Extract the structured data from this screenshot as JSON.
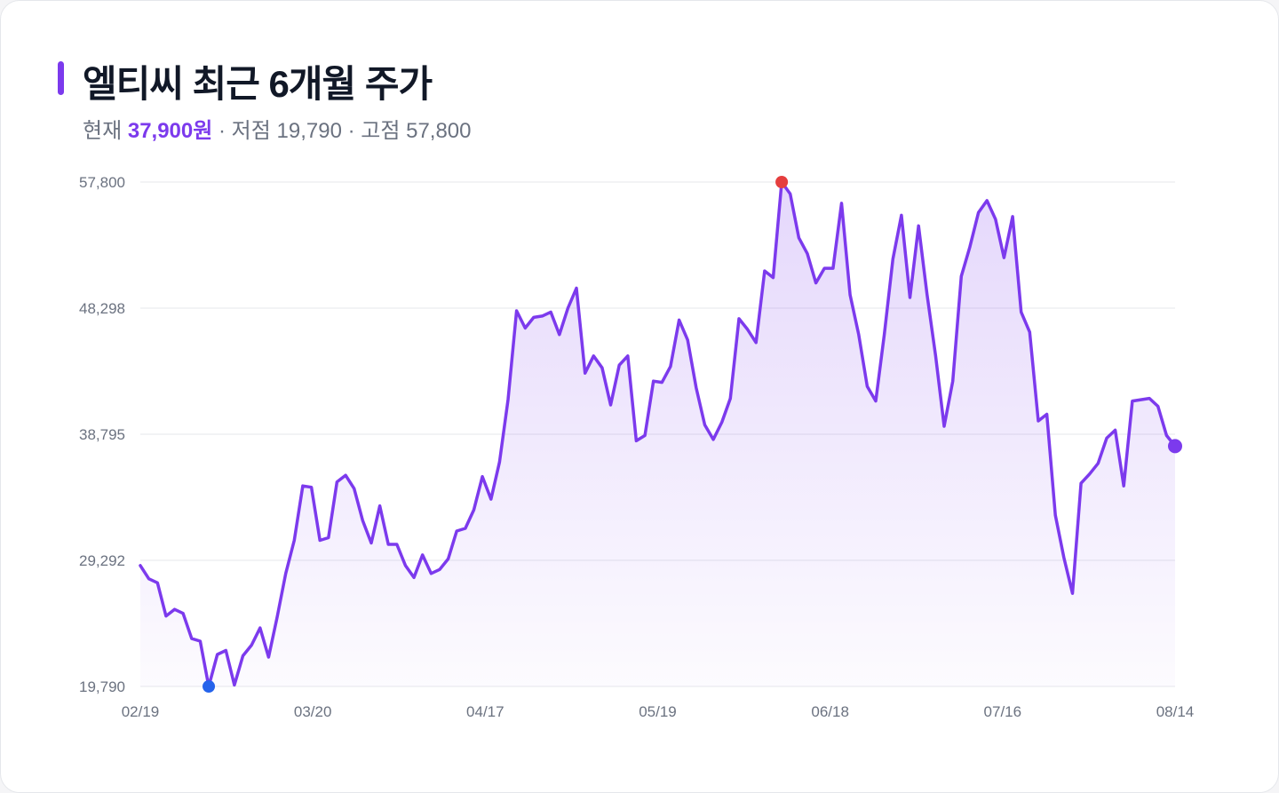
{
  "header": {
    "title": "엘티씨 최근 6개월 주가",
    "current_label": "현재",
    "current_value": "37,900원",
    "sep1": " · ",
    "low_label": "저점",
    "low_value": "19,790",
    "sep2": " · ",
    "high_label": "고점",
    "high_value": "57,800"
  },
  "colors": {
    "accent": "#7c3aed",
    "line": "#7c3aed",
    "low_marker": "#2563eb",
    "high_marker": "#e53e3e",
    "grid": "#e5e7eb",
    "tick_text": "#6b7280"
  },
  "chart_data": {
    "type": "line",
    "title": "엘티씨 최근 6개월 주가",
    "xlabel": "",
    "ylabel": "",
    "ylim": [
      19790,
      57800
    ],
    "y_ticks": [
      19790,
      29292,
      38795,
      48298,
      57800
    ],
    "y_tick_labels": [
      "19,790",
      "29,292",
      "38,795",
      "48,298",
      "57,800"
    ],
    "x_tick_labels": [
      "02/19",
      "03/20",
      "04/17",
      "05/19",
      "06/18",
      "07/16",
      "08/14"
    ],
    "grid": true,
    "area_fill": true,
    "markers": {
      "low_index": 8,
      "high_index": 75,
      "last_index": 121
    },
    "series": [
      {
        "values": [
          28900,
          27900,
          27600,
          25100,
          25600,
          25300,
          23400,
          23200,
          19790,
          22200,
          22500,
          19900,
          22100,
          22900,
          24200,
          22000,
          25000,
          28300,
          30800,
          34900,
          34800,
          30800,
          31000,
          35200,
          35700,
          34700,
          32300,
          30600,
          33400,
          30500,
          30500,
          28900,
          28000,
          29700,
          28300,
          28600,
          29400,
          31500,
          31700,
          33100,
          35600,
          33900,
          36700,
          41400,
          48100,
          46800,
          47600,
          47700,
          48000,
          46300,
          48300,
          49800,
          43400,
          44700,
          43800,
          41000,
          44000,
          44700,
          38300,
          38700,
          42800,
          42700,
          43900,
          47400,
          45900,
          42300,
          39500,
          38400,
          39700,
          41500,
          47500,
          46700,
          45700,
          51100,
          50600,
          57800,
          56900,
          53600,
          52400,
          50200,
          51300,
          51300,
          56200,
          49300,
          46300,
          42400,
          41300,
          46300,
          52000,
          55300,
          49100,
          54500,
          49300,
          44700,
          39400,
          42800,
          50700,
          52900,
          55500,
          56400,
          55000,
          52100,
          55200,
          48000,
          46500,
          39800,
          40300,
          32700,
          29500,
          26800,
          35100,
          35800,
          36600,
          38500,
          39100,
          34900,
          41300,
          41400,
          41500,
          40900,
          38700,
          37900
        ]
      }
    ]
  }
}
